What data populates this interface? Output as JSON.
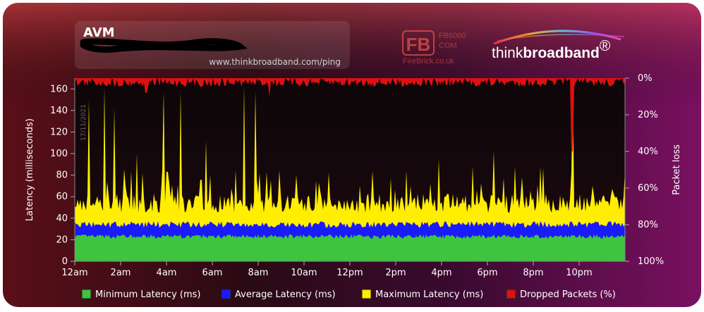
{
  "header": {
    "title": "AVM",
    "url": "www.thinkbroadband.com/ping",
    "date": "17/11/2021"
  },
  "logos": {
    "firebrick_model": "FB6000",
    "firebrick_com": "COM",
    "firebrick_site": "FireBrick.co.uk",
    "firebrick_letters": "FB",
    "thinkbroadband_think": "think",
    "thinkbroadband_broadband": "broadband",
    "thinkbroadband_reg": "®"
  },
  "chart_data": {
    "type": "area",
    "ylabel": "Latency (milliseconds)",
    "y2label": "Packet loss",
    "ylim": [
      0,
      170
    ],
    "y2lim": [
      0,
      100
    ],
    "y_ticks": [
      0,
      20,
      40,
      60,
      80,
      100,
      120,
      140,
      160
    ],
    "y2_ticks": [
      "0%",
      "20%",
      "40%",
      "60%",
      "80%",
      "100%"
    ],
    "x_ticks": [
      "12am",
      "2am",
      "4am",
      "6am",
      "8am",
      "10am",
      "12pm",
      "2pm",
      "4pm",
      "6pm",
      "8pm",
      "10pm"
    ],
    "xlim_hours": [
      0,
      24
    ],
    "grid": false,
    "legend": {
      "placement": "bottom",
      "items": [
        {
          "label": "Minimum Latency (ms)",
          "color": "#3ec43e"
        },
        {
          "label": "Average Latency (ms)",
          "color": "#1a1aff"
        },
        {
          "label": "Maximum Latency (ms)",
          "color": "#ffee00"
        },
        {
          "label": "Dropped Packets (%)",
          "color": "#dd1111"
        }
      ]
    },
    "series": [
      {
        "name": "Minimum Latency (ms)",
        "typical_ms": 23
      },
      {
        "name": "Average Latency (ms)",
        "typical_ms": 33
      },
      {
        "name": "Maximum Latency (ms)",
        "typical_ms": 52,
        "spikes": [
          {
            "hour": 0.6,
            "ms": 150
          },
          {
            "hour": 1.3,
            "ms": 162
          },
          {
            "hour": 1.7,
            "ms": 142
          },
          {
            "hour": 2.7,
            "ms": 100
          },
          {
            "hour": 3.9,
            "ms": 158
          },
          {
            "hour": 4.6,
            "ms": 158
          },
          {
            "hour": 5.7,
            "ms": 112
          },
          {
            "hour": 7.4,
            "ms": 163
          },
          {
            "hour": 7.9,
            "ms": 158
          },
          {
            "hour": 10.5,
            "ms": 75
          },
          {
            "hour": 15.9,
            "ms": 95
          },
          {
            "hour": 18.3,
            "ms": 102
          },
          {
            "hour": 19.5,
            "ms": 78
          },
          {
            "hour": 21.7,
            "ms": 162
          },
          {
            "hour": 22.6,
            "ms": 70
          }
        ]
      },
      {
        "name": "Dropped Packets (%)",
        "typical_pct": 3,
        "spikes": [
          {
            "hour": 21.7,
            "pct": 40
          },
          {
            "hour": 8.5,
            "pct": 10
          },
          {
            "hour": 3.1,
            "pct": 8
          }
        ]
      }
    ]
  }
}
